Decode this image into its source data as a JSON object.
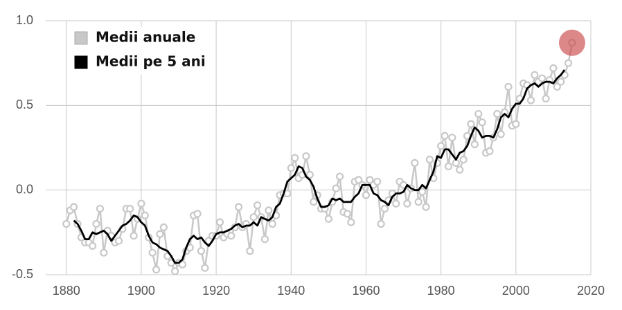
{
  "chart_data": {
    "type": "line",
    "xlim": [
      1874.5,
      2020
    ],
    "ylim": [
      -0.5,
      1.0
    ],
    "xticks": [
      1880,
      1900,
      1920,
      1940,
      1960,
      1980,
      2000,
      2020
    ],
    "yticks": [
      {
        "value": -0.5,
        "label": "-0.5"
      },
      {
        "value": 0,
        "label": "0.0"
      },
      {
        "value": 0.5,
        "label": "0.5"
      },
      {
        "value": 1.0,
        "label": "1.0"
      }
    ],
    "grid": true,
    "legend": "upper-left",
    "highlight_color": "#c9484a",
    "series": [
      {
        "name": "Medii anuale",
        "color": "#c8c8c8",
        "x": [
          1880,
          1881,
          1882,
          1883,
          1884,
          1885,
          1886,
          1887,
          1888,
          1889,
          1890,
          1891,
          1892,
          1893,
          1894,
          1895,
          1896,
          1897,
          1898,
          1899,
          1900,
          1901,
          1902,
          1903,
          1904,
          1905,
          1906,
          1907,
          1908,
          1909,
          1910,
          1911,
          1912,
          1913,
          1914,
          1915,
          1916,
          1917,
          1918,
          1919,
          1920,
          1921,
          1922,
          1923,
          1924,
          1925,
          1926,
          1927,
          1928,
          1929,
          1930,
          1931,
          1932,
          1933,
          1934,
          1935,
          1936,
          1937,
          1938,
          1939,
          1940,
          1941,
          1942,
          1943,
          1944,
          1945,
          1946,
          1947,
          1948,
          1949,
          1950,
          1951,
          1952,
          1953,
          1954,
          1955,
          1956,
          1957,
          1958,
          1959,
          1960,
          1961,
          1962,
          1963,
          1964,
          1965,
          1966,
          1967,
          1968,
          1969,
          1970,
          1971,
          1972,
          1973,
          1974,
          1975,
          1976,
          1977,
          1978,
          1979,
          1980,
          1981,
          1982,
          1983,
          1984,
          1985,
          1986,
          1987,
          1988,
          1989,
          1990,
          1991,
          1992,
          1993,
          1994,
          1995,
          1996,
          1997,
          1998,
          1999,
          2000,
          2001,
          2002,
          2003,
          2004,
          2005,
          2006,
          2007,
          2008,
          2009,
          2010,
          2011,
          2012,
          2013,
          2014,
          2015
        ],
        "values": [
          -0.2,
          -0.12,
          -0.1,
          -0.2,
          -0.28,
          -0.31,
          -0.31,
          -0.33,
          -0.2,
          -0.11,
          -0.37,
          -0.24,
          -0.27,
          -0.31,
          -0.3,
          -0.23,
          -0.11,
          -0.11,
          -0.27,
          -0.17,
          -0.08,
          -0.15,
          -0.28,
          -0.37,
          -0.47,
          -0.26,
          -0.22,
          -0.39,
          -0.43,
          -0.48,
          -0.43,
          -0.44,
          -0.36,
          -0.34,
          -0.15,
          -0.14,
          -0.36,
          -0.46,
          -0.3,
          -0.27,
          -0.27,
          -0.19,
          -0.28,
          -0.26,
          -0.27,
          -0.22,
          -0.1,
          -0.22,
          -0.2,
          -0.36,
          -0.16,
          -0.09,
          -0.16,
          -0.29,
          -0.12,
          -0.2,
          -0.15,
          -0.03,
          -0.02,
          -0.02,
          0.13,
          0.19,
          0.07,
          0.09,
          0.2,
          0.09,
          -0.07,
          -0.03,
          -0.11,
          -0.11,
          -0.17,
          -0.07,
          0.01,
          0.08,
          -0.13,
          -0.14,
          -0.19,
          0.05,
          0.06,
          0.03,
          -0.03,
          0.06,
          0.03,
          0.05,
          -0.2,
          -0.11,
          -0.06,
          -0.02,
          -0.08,
          0.05,
          0.03,
          -0.08,
          0.01,
          0.16,
          -0.07,
          -0.01,
          -0.1,
          0.18,
          0.07,
          0.16,
          0.26,
          0.32,
          0.14,
          0.31,
          0.16,
          0.12,
          0.18,
          0.32,
          0.39,
          0.27,
          0.45,
          0.4,
          0.22,
          0.23,
          0.31,
          0.45,
          0.33,
          0.46,
          0.61,
          0.38,
          0.39,
          0.54,
          0.63,
          0.62,
          0.53,
          0.68,
          0.64,
          0.66,
          0.54,
          0.65,
          0.72,
          0.61,
          0.64,
          0.68,
          0.75,
          0.87
        ]
      },
      {
        "name": "Medii pe 5 ani",
        "color": "#000000",
        "x": [
          1882,
          1883,
          1884,
          1885,
          1886,
          1887,
          1888,
          1889,
          1890,
          1891,
          1892,
          1893,
          1894,
          1895,
          1896,
          1897,
          1898,
          1899,
          1900,
          1901,
          1902,
          1903,
          1904,
          1905,
          1906,
          1907,
          1908,
          1909,
          1910,
          1911,
          1912,
          1913,
          1914,
          1915,
          1916,
          1917,
          1918,
          1919,
          1920,
          1921,
          1922,
          1923,
          1924,
          1925,
          1926,
          1927,
          1928,
          1929,
          1930,
          1931,
          1932,
          1933,
          1934,
          1935,
          1936,
          1937,
          1938,
          1939,
          1940,
          1941,
          1942,
          1943,
          1944,
          1945,
          1946,
          1947,
          1948,
          1949,
          1950,
          1951,
          1952,
          1953,
          1954,
          1955,
          1956,
          1957,
          1958,
          1959,
          1960,
          1961,
          1962,
          1963,
          1964,
          1965,
          1966,
          1967,
          1968,
          1969,
          1970,
          1971,
          1972,
          1973,
          1974,
          1975,
          1976,
          1977,
          1978,
          1979,
          1980,
          1981,
          1982,
          1983,
          1984,
          1985,
          1986,
          1987,
          1988,
          1989,
          1990,
          1991,
          1992,
          1993,
          1994,
          1995,
          1996,
          1997,
          1998,
          1999,
          2000,
          2001,
          2002,
          2003,
          2004,
          2005,
          2006,
          2007,
          2008,
          2009,
          2010,
          2011,
          2012,
          2013
        ],
        "values": [
          -0.18,
          -0.2,
          -0.24,
          -0.29,
          -0.29,
          -0.25,
          -0.26,
          -0.25,
          -0.24,
          -0.26,
          -0.3,
          -0.27,
          -0.24,
          -0.21,
          -0.2,
          -0.18,
          -0.15,
          -0.16,
          -0.19,
          -0.21,
          -0.27,
          -0.31,
          -0.32,
          -0.34,
          -0.35,
          -0.36,
          -0.39,
          -0.43,
          -0.43,
          -0.41,
          -0.34,
          -0.29,
          -0.27,
          -0.29,
          -0.28,
          -0.31,
          -0.33,
          -0.3,
          -0.26,
          -0.25,
          -0.25,
          -0.24,
          -0.23,
          -0.21,
          -0.2,
          -0.22,
          -0.21,
          -0.21,
          -0.19,
          -0.21,
          -0.16,
          -0.17,
          -0.18,
          -0.16,
          -0.1,
          -0.08,
          -0.02,
          0.05,
          0.07,
          0.09,
          0.14,
          0.13,
          0.08,
          0.06,
          0.02,
          -0.05,
          -0.1,
          -0.1,
          -0.09,
          -0.05,
          -0.06,
          -0.05,
          -0.07,
          -0.07,
          -0.07,
          -0.04,
          -0.02,
          0.03,
          0.03,
          0.03,
          -0.02,
          -0.03,
          -0.06,
          -0.07,
          -0.09,
          -0.04,
          -0.02,
          -0.02,
          -0.01,
          0.03,
          0.01,
          0.0,
          0.0,
          0.03,
          0.01,
          0.06,
          0.11,
          0.2,
          0.19,
          0.24,
          0.24,
          0.21,
          0.18,
          0.22,
          0.23,
          0.26,
          0.32,
          0.37,
          0.35,
          0.31,
          0.32,
          0.32,
          0.31,
          0.36,
          0.43,
          0.45,
          0.43,
          0.48,
          0.51,
          0.51,
          0.54,
          0.6,
          0.62,
          0.63,
          0.61,
          0.63,
          0.64,
          0.64,
          0.63,
          0.66,
          0.68,
          0.71
        ]
      }
    ]
  }
}
